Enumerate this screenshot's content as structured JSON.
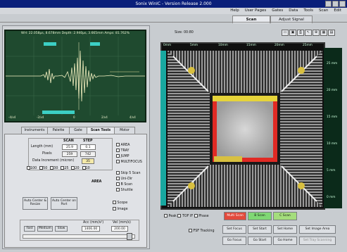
{
  "window": {
    "title": "Sonix WinIC - Version Release 2.000"
  },
  "menu": {
    "items": [
      "Edit",
      "Scan",
      "Tools",
      "Data",
      "Gates",
      "User Pages",
      "Help"
    ]
  },
  "tabs": {
    "top": [
      "Scan",
      "Adjust Signal"
    ]
  },
  "oscilloscope": {
    "readout": "WH: 22.058µs, 8.678mm  Depth: 2.940µs, 3.665mm  Amps: 81.762%",
    "x_ticks": [
      "-4/x4",
      "-2/x4",
      "0",
      "2/x4",
      "4/x4"
    ],
    "trace_color": "#f4f0c0",
    "gate_color": "#3ccfc4"
  },
  "image_view": {
    "zoom_label": "Size: 00:80",
    "top_scale": [
      "0mm",
      "5mm",
      "10mm",
      "15mm",
      "20mm",
      "25mm"
    ],
    "right_scale": [
      "25 mm",
      "20 mm",
      "15 mm",
      "10 mm",
      "5 mm",
      "0 mm"
    ],
    "toolbar_icons": [
      "open-icon",
      "save-icon",
      "print-icon",
      "cursor-icon",
      "zoom-icon",
      "grid-icon",
      "ruler-icon"
    ]
  },
  "scan_panel": {
    "tabs": [
      "Instruments",
      "Palette",
      "Gate",
      "Scan Tools",
      "Motor"
    ],
    "scan_type_options": [
      "AREA",
      "TRAY",
      "JUMP",
      "MULTIFOCUS"
    ],
    "section_headers": [
      "SCAN",
      "STEP"
    ],
    "length_label": "Length (mm)",
    "pixels_label": "Pixels",
    "scan_value": "25.9",
    "step_value": "0.1",
    "scan_pixels": "259",
    "step_pixels": "742",
    "data_increment_label": "Data Increment (micron)",
    "data_increment_value": "35",
    "increment_options": [
      "100",
      "50",
      "30",
      "25",
      "20",
      "10"
    ],
    "options": [
      "Skip 5 Scan",
      "Uni-Dir",
      "B Scan",
      "Shuttle"
    ],
    "area_label": "AREA",
    "auto_center_zoom": "Auto Center on Part",
    "auto_center_resize": "Auto Center & Resize",
    "scope_label": "Scope",
    "image_label": "Image",
    "vel_label": "Vel (mm/s)",
    "acc_label": "Acc (mm/s²)",
    "vel_value": "200.00",
    "acc_value": "1406.00",
    "speed_buttons": [
      "Fast",
      "Medium",
      "Slow"
    ],
    "fsf_tracking": "FSF Tracking"
  },
  "bottom_controls": {
    "peak_label": "Peak",
    "tof_label": "TOF IF",
    "phase_label": "Phase",
    "c_scan": "C Scan",
    "b_scan": "B Scan",
    "multi_scan": "Multi Scan",
    "buttons_row1": [
      "Set Image Area",
      "Set Home",
      "Set Start",
      "Set Focus"
    ],
    "buttons_row2": [
      "Set Tray Scanning",
      "Go Home",
      "Go Start",
      "Go Focus"
    ]
  }
}
